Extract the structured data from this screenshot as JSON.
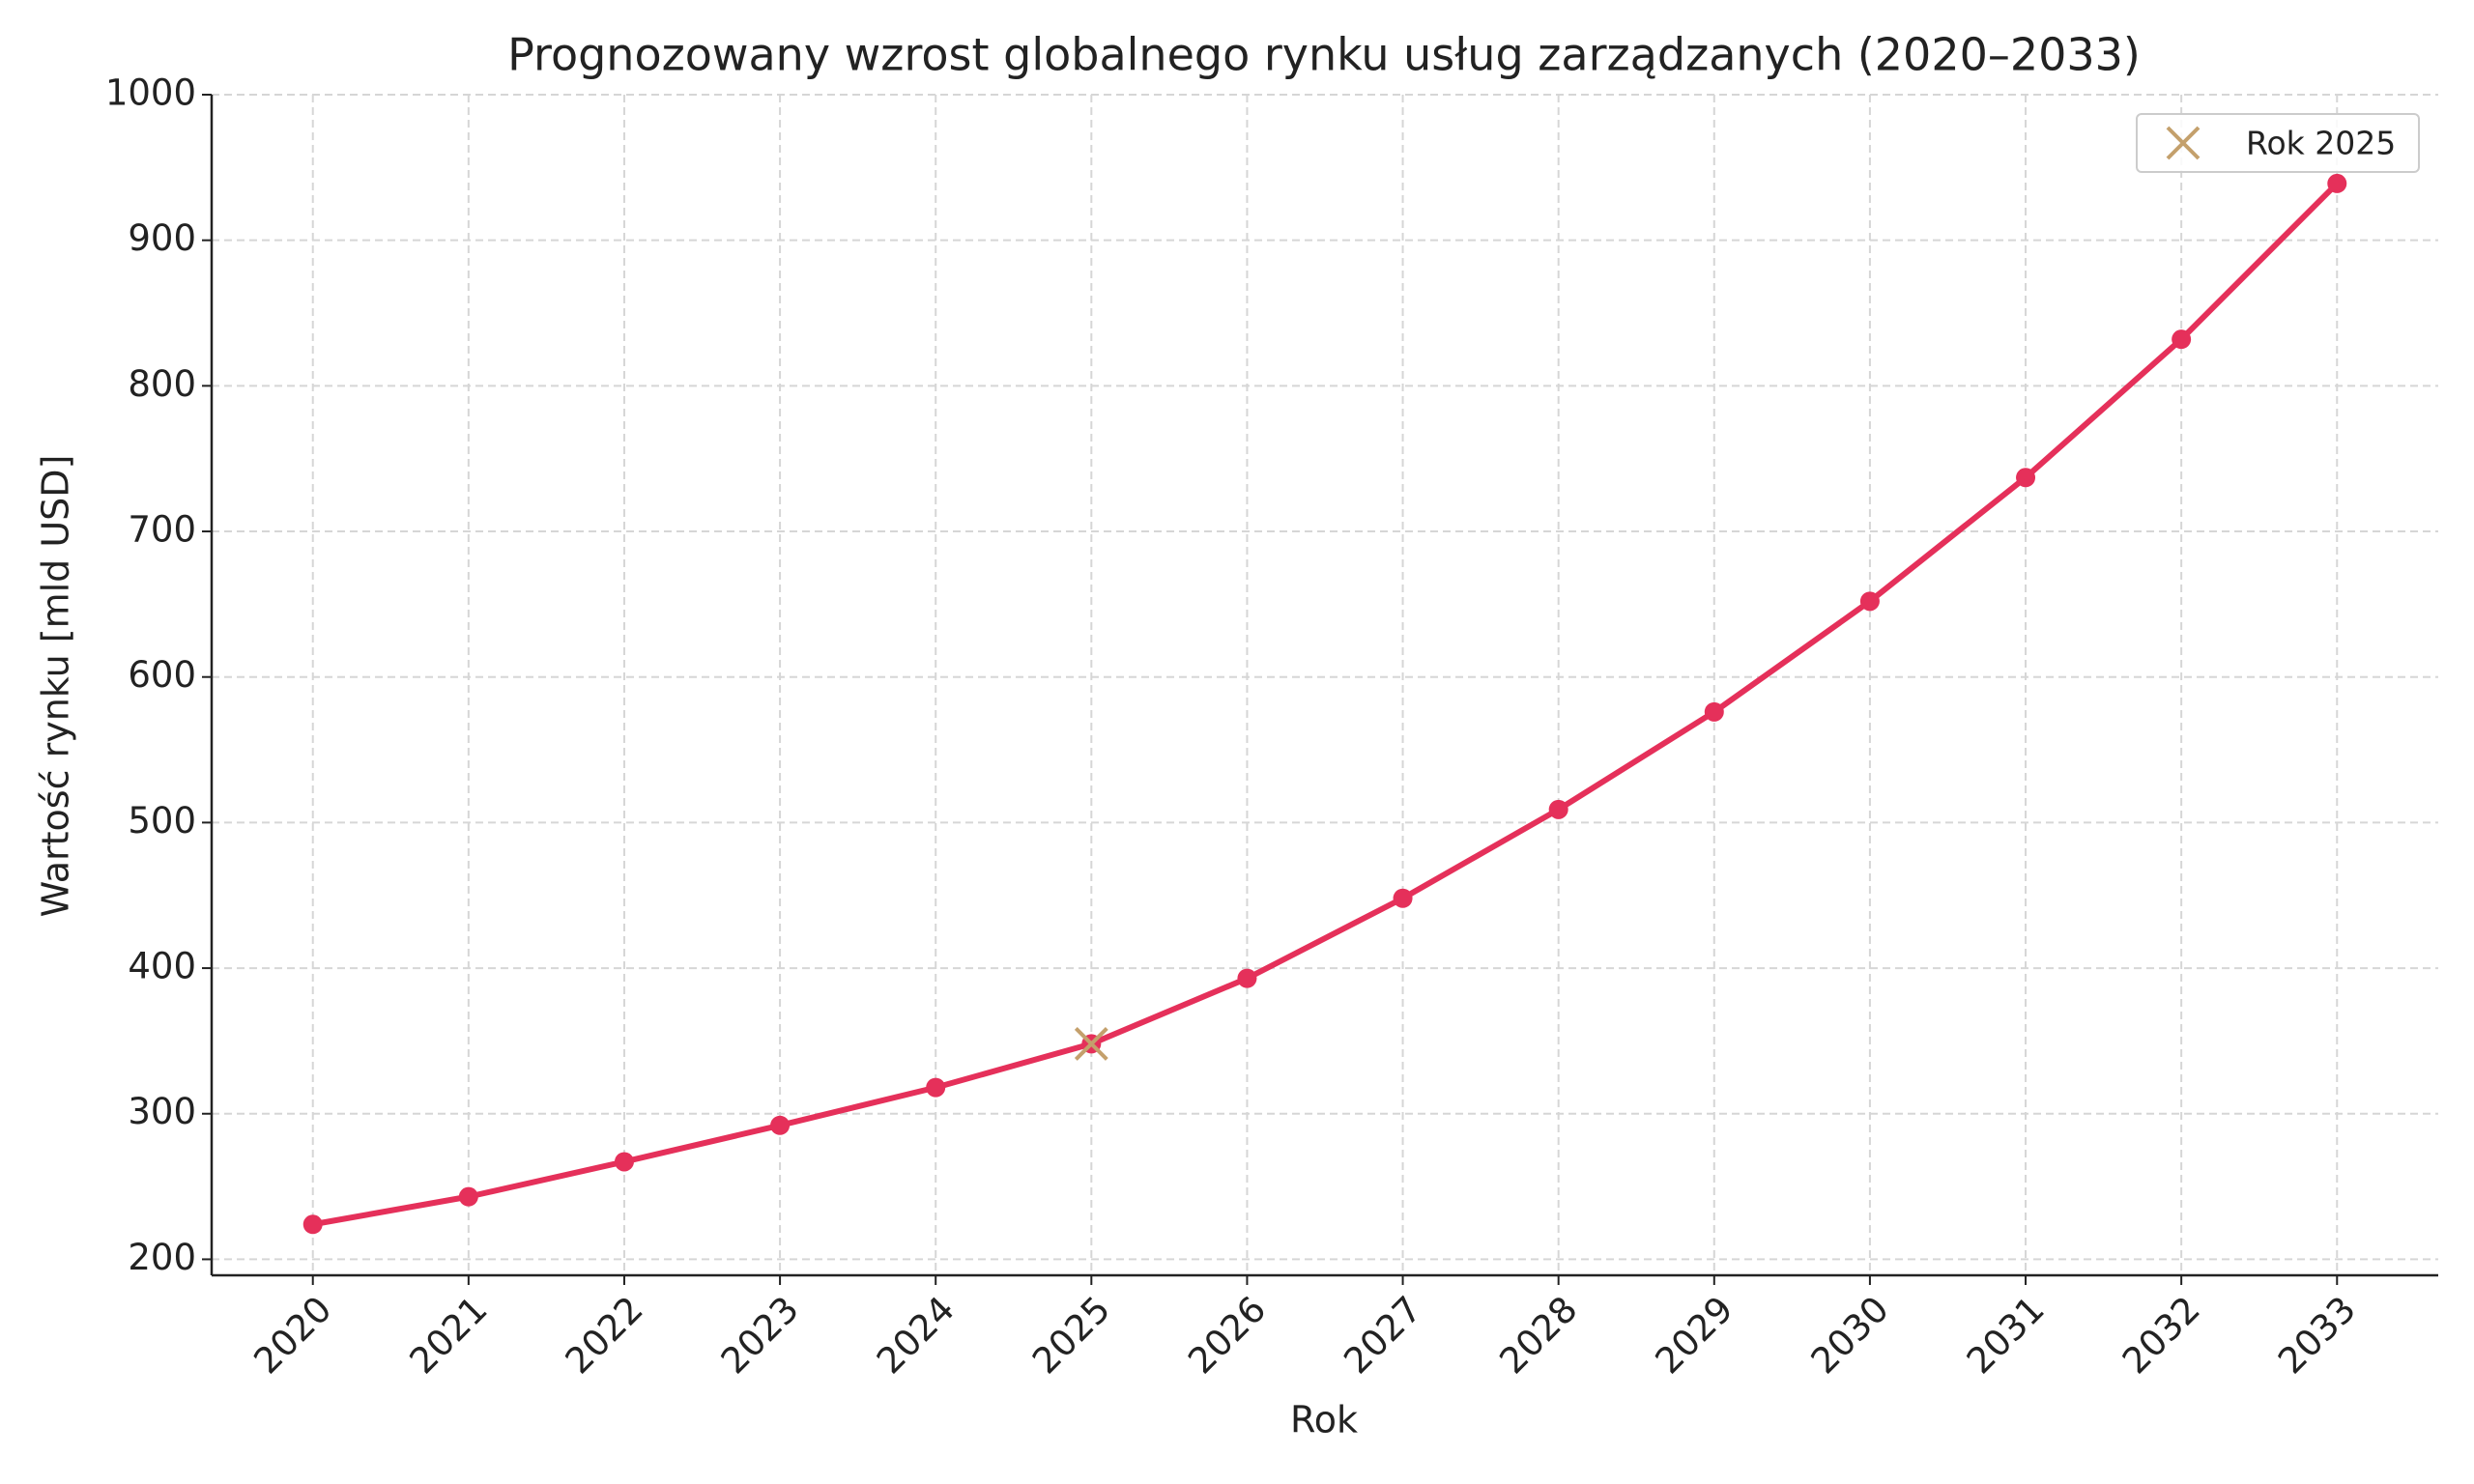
{
  "chart_data": {
    "type": "line",
    "title": "Prognozowany wzrost globalnego rynku usług zarządzanych (2020–2033)",
    "x_label": "Rok",
    "y_label": "Wartość rynku [mld USD]",
    "x": [
      2020,
      2021,
      2022,
      2023,
      2024,
      2025,
      2026,
      2027,
      2028,
      2029,
      2030,
      2031,
      2032,
      2033
    ],
    "series": [
      {
        "color": "#e5305a",
        "values": [
          224,
          243,
          267,
          292,
          318,
          348,
          393,
          448,
          509,
          576,
          652,
          737,
          832,
          939
        ]
      }
    ],
    "highlight": {
      "name": "Rok 2025",
      "x": 2025,
      "value": 348,
      "color": "#c4a06c"
    },
    "xlim": [
      2019.35,
      2033.65
    ],
    "ylim": [
      189,
      1000
    ],
    "xticks": [
      2020,
      2021,
      2022,
      2023,
      2024,
      2025,
      2026,
      2027,
      2028,
      2029,
      2030,
      2031,
      2032,
      2033
    ],
    "yticks": [
      200,
      300,
      400,
      500,
      600,
      700,
      800,
      900,
      1000
    ],
    "grid": true,
    "legend_position": "upper right"
  }
}
